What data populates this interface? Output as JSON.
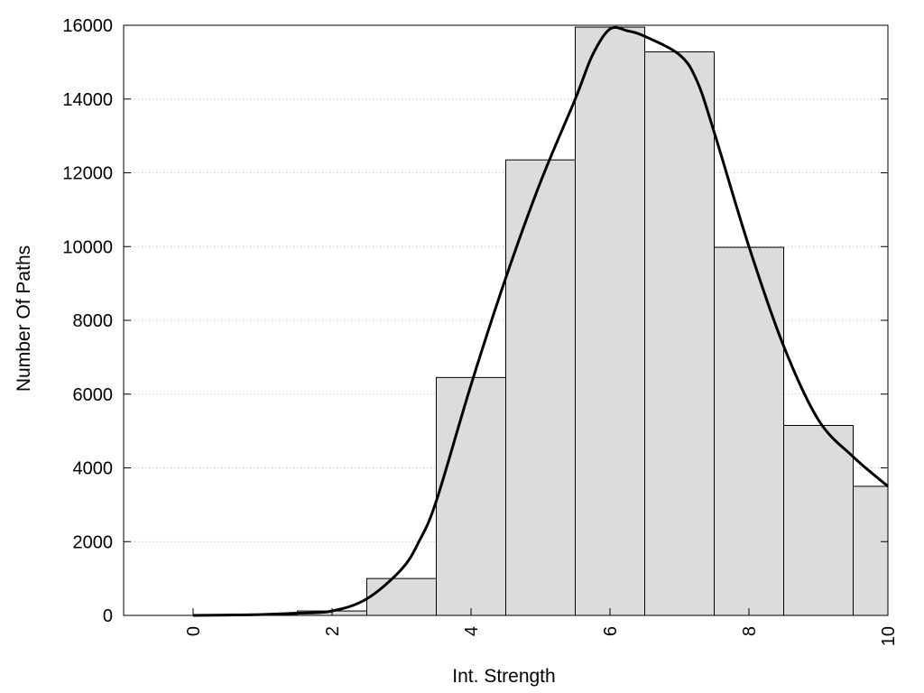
{
  "chart_data": {
    "type": "bar",
    "xlabel": "Int. Strength",
    "ylabel": "Number Of Paths",
    "xlim": [
      -1,
      10
    ],
    "ylim": [
      0,
      16000
    ],
    "x_ticks": [
      "0",
      "2",
      "4",
      "6",
      "8",
      "10"
    ],
    "y_ticks": [
      "0",
      "2000",
      "4000",
      "6000",
      "8000",
      "10000",
      "12000",
      "14000",
      "16000"
    ],
    "grid": "horizontal-dotted",
    "legend": "none",
    "bar_fill": "#dcdcdc",
    "bar_stroke": "#000000",
    "bins": [
      {
        "center": 0,
        "value": 0
      },
      {
        "center": 1,
        "value": 30
      },
      {
        "center": 2,
        "value": 120
      },
      {
        "center": 3,
        "value": 1000
      },
      {
        "center": 4,
        "value": 6450
      },
      {
        "center": 5,
        "value": 12350
      },
      {
        "center": 6,
        "value": 15950
      },
      {
        "center": 7,
        "value": 15280
      },
      {
        "center": 8,
        "value": 9980
      },
      {
        "center": 9,
        "value": 5150
      },
      {
        "center": 10,
        "value": 3500
      }
    ],
    "curve": {
      "x": [
        0,
        0.5,
        1,
        1.5,
        2,
        2.5,
        3,
        3.25,
        3.5,
        4,
        4.5,
        5,
        5.5,
        5.75,
        6,
        6.25,
        6.5,
        7,
        7.25,
        7.5,
        8,
        8.5,
        9,
        9.5,
        10
      ],
      "y": [
        0,
        10,
        25,
        60,
        120,
        450,
        1250,
        2000,
        3100,
        6250,
        9150,
        11750,
        14000,
        15200,
        15900,
        15850,
        15700,
        15200,
        14500,
        13100,
        10000,
        7300,
        5300,
        4300,
        3500
      ]
    }
  }
}
